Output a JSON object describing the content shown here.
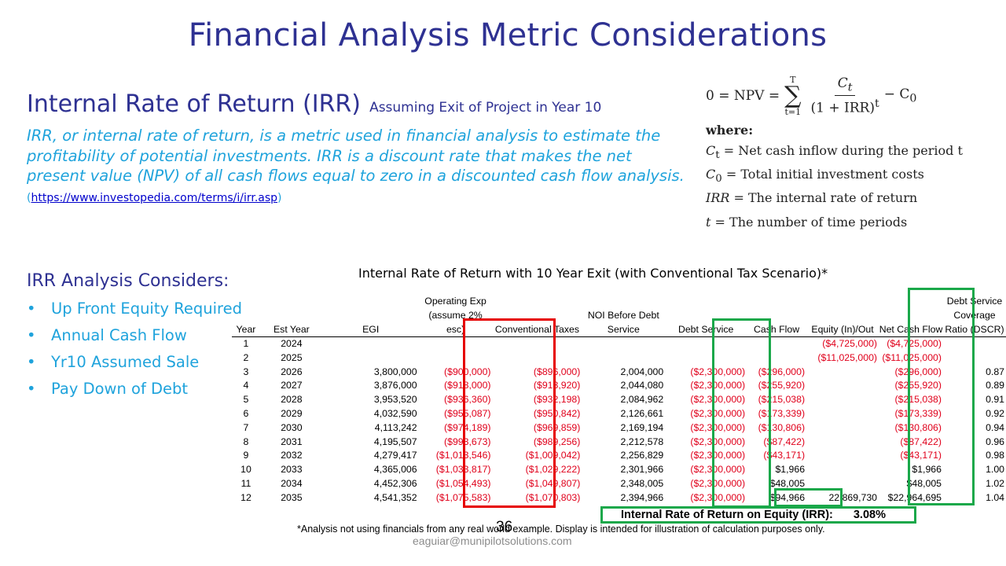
{
  "slide": {
    "title": "Financial Analysis Metric Considerations",
    "page_number": "36",
    "email": "eaguiar@munipilotsolutions.com"
  },
  "irr": {
    "heading": "Internal Rate of Return (IRR)",
    "subheading": "Assuming Exit of Project in Year 10",
    "description": "IRR, or internal rate of return, is a metric used in financial analysis to estimate the profitability of potential investments. IRR is a discount rate that makes the net present value (NPV) of all cash flows equal to zero in a discounted cash flow analysis.",
    "source_prefix": "(",
    "source_link": "https://www.investopedia.com/terms/i/irr.asp",
    "source_suffix": ")"
  },
  "formula": {
    "lhs": "0 = NPV =",
    "sum_upper": "T",
    "sum_lower": "t=1",
    "numerator": "C",
    "numerator_sub": "t",
    "denominator": "(1 + IRR)",
    "denominator_sup": "t",
    "rhs": "− C",
    "rhs_sub": "0",
    "where": "where:",
    "definitions": [
      {
        "sym": "C",
        "sub": "t",
        "text": " = Net cash inflow during the period t"
      },
      {
        "sym": "C",
        "sub": "0",
        "text": " = Total initial investment costs"
      },
      {
        "sym": "IRR",
        "sub": "",
        "text": " = The internal rate of return"
      },
      {
        "sym": "t",
        "sub": "",
        "text": " = The number of time periods"
      }
    ]
  },
  "considers": {
    "heading": "IRR Analysis Considers:",
    "bullet": "•",
    "items": [
      "Up Front Equity Required",
      "Annual Cash Flow",
      "Yr10 Assumed Sale",
      "Pay Down of Debt"
    ]
  },
  "table": {
    "title": "Internal Rate of Return with 10 Year Exit (with Conventional Tax Scenario)*",
    "columns": [
      "Year",
      "Est Year",
      "EGI",
      "Operating Exp (assume 2% esc)",
      "Conventional Taxes",
      "NOI Before Debt Service",
      "Debt Service",
      "Cash Flow",
      "Equity (In)/Out",
      "Net Cash Flow",
      "Debt Service Coverage Ratio (DSCR)"
    ],
    "rows": [
      [
        "1",
        "2024",
        "",
        "",
        "",
        "",
        "",
        "",
        "($4,725,000)",
        "($4,725,000)",
        ""
      ],
      [
        "2",
        "2025",
        "",
        "",
        "",
        "",
        "",
        "",
        "($11,025,000)",
        "($11,025,000)",
        ""
      ],
      [
        "3",
        "2026",
        "3,800,000",
        "($900,000)",
        "($896,000)",
        "2,004,000",
        "($2,300,000)",
        "($296,000)",
        "",
        "($296,000)",
        "0.87"
      ],
      [
        "4",
        "2027",
        "3,876,000",
        "($918,000)",
        "($913,920)",
        "2,044,080",
        "($2,300,000)",
        "($255,920)",
        "",
        "($255,920)",
        "0.89"
      ],
      [
        "5",
        "2028",
        "3,953,520",
        "($936,360)",
        "($932,198)",
        "2,084,962",
        "($2,300,000)",
        "($215,038)",
        "",
        "($215,038)",
        "0.91"
      ],
      [
        "6",
        "2029",
        "4,032,590",
        "($955,087)",
        "($950,842)",
        "2,126,661",
        "($2,300,000)",
        "($173,339)",
        "",
        "($173,339)",
        "0.92"
      ],
      [
        "7",
        "2030",
        "4,113,242",
        "($974,189)",
        "($969,859)",
        "2,169,194",
        "($2,300,000)",
        "($130,806)",
        "",
        "($130,806)",
        "0.94"
      ],
      [
        "8",
        "2031",
        "4,195,507",
        "($993,673)",
        "($989,256)",
        "2,212,578",
        "($2,300,000)",
        "($87,422)",
        "",
        "($87,422)",
        "0.96"
      ],
      [
        "9",
        "2032",
        "4,279,417",
        "($1,013,546)",
        "($1,009,042)",
        "2,256,829",
        "($2,300,000)",
        "($43,171)",
        "",
        "($43,171)",
        "0.98"
      ],
      [
        "10",
        "2033",
        "4,365,006",
        "($1,033,817)",
        "($1,029,222)",
        "2,301,966",
        "($2,300,000)",
        "$1,966",
        "",
        "$1,966",
        "1.00"
      ],
      [
        "11",
        "2034",
        "4,452,306",
        "($1,054,493)",
        "($1,049,807)",
        "2,348,005",
        "($2,300,000)",
        "$48,005",
        "",
        "$48,005",
        "1.02"
      ],
      [
        "12",
        "2035",
        "4,541,352",
        "($1,075,583)",
        "($1,070,803)",
        "2,394,966",
        "($2,300,000)",
        "$94,966",
        "22,869,730",
        "$22,964,695",
        "1.04"
      ]
    ],
    "irr_label": "Internal Rate of Return on Equity (IRR):",
    "irr_value": "3.08%",
    "footnote": "*Analysis not using financials from any real world example. Display is intended for illustration of calculation purposes only."
  },
  "colors": {
    "title": "#2e3192",
    "accent": "#1fa3dc",
    "negative": "#e0001b",
    "highlight_red": "#e60000",
    "highlight_green": "#1aa84a"
  }
}
